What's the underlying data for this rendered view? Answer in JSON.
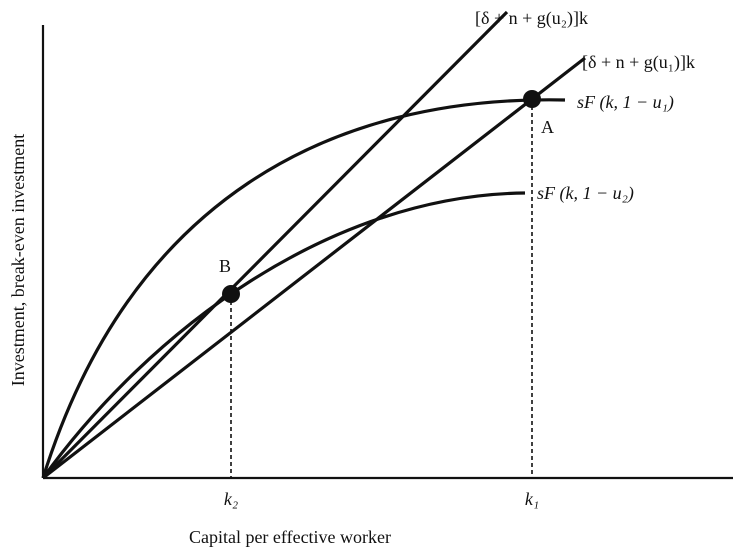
{
  "axes": {
    "x_label": "Capital per effective worker",
    "y_label": "Investment, break-even investment"
  },
  "lines": [
    {
      "label": "[δ + n + g(u₂)]k"
    },
    {
      "label": "[δ + n + g(u₁)]k"
    }
  ],
  "curves": [
    {
      "label": "sF (k, 1 − u₁)"
    },
    {
      "label": "sF (k, 1 − u₂)"
    }
  ],
  "points": [
    {
      "label": "A",
      "k_label": "k₁"
    },
    {
      "label": "B",
      "k_label": "k₂"
    }
  ]
}
